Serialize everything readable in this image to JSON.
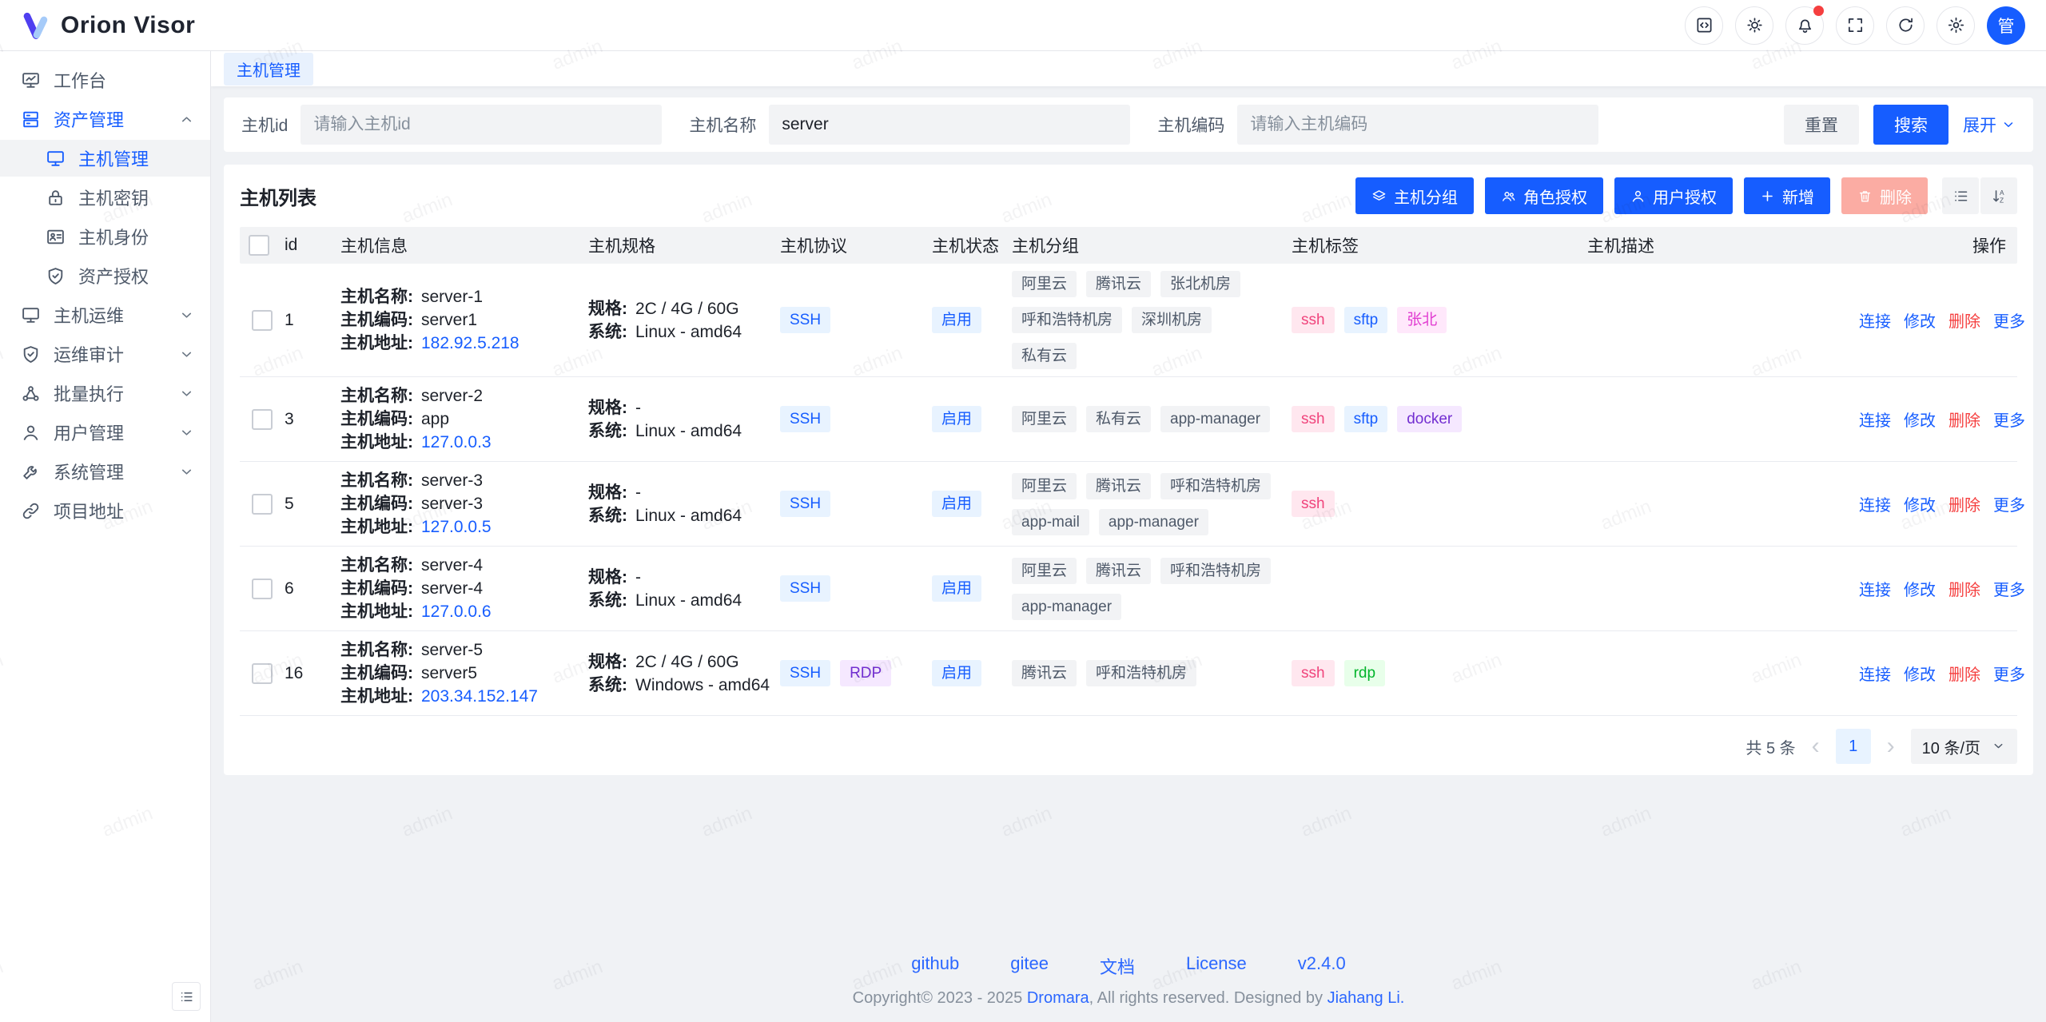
{
  "app": {
    "name": "Orion Visor"
  },
  "colors": {
    "primary": "#165dff",
    "danger": "#f53f3f",
    "danger_disabled_bg": "#fbaca3",
    "tag_palette": {
      "gray": {
        "bg": "#f2f3f5",
        "fg": "#4e5969"
      },
      "blue": {
        "bg": "#e8f3ff",
        "fg": "#165dff"
      },
      "purple": {
        "bg": "#f5e8ff",
        "fg": "#722ed1"
      },
      "pink": {
        "bg": "#ffe7ef",
        "fg": "#f0447c"
      },
      "magenta": {
        "bg": "#ffe8fb",
        "fg": "#e13ed1"
      },
      "green": {
        "bg": "#e8ffea",
        "fg": "#00b42a"
      }
    }
  },
  "header": {
    "avatar_text": "管",
    "buttons": [
      {
        "key": "code",
        "icon": "code-square-icon",
        "badge": false
      },
      {
        "key": "theme",
        "icon": "sun-icon",
        "badge": false
      },
      {
        "key": "notifications",
        "icon": "bell-icon",
        "badge": true
      },
      {
        "key": "fullscreen",
        "icon": "fullscreen-icon",
        "badge": false
      },
      {
        "key": "refresh",
        "icon": "refresh-icon",
        "badge": false
      },
      {
        "key": "settings",
        "icon": "gear-icon",
        "badge": false
      }
    ]
  },
  "sidebar": {
    "items": [
      {
        "key": "workbench",
        "label": "工作台",
        "icon": "workbench"
      },
      {
        "key": "asset-management",
        "label": "资产管理",
        "icon": "asset",
        "expanded": true,
        "children": [
          {
            "key": "host-management",
            "label": "主机管理",
            "icon": "host",
            "active": true
          },
          {
            "key": "host-key",
            "label": "主机密钥",
            "icon": "lock"
          },
          {
            "key": "host-identity",
            "label": "主机身份",
            "icon": "idcard"
          },
          {
            "key": "asset-authorization",
            "label": "资产授权",
            "icon": "shield"
          }
        ]
      },
      {
        "key": "host-ops",
        "label": "主机运维",
        "icon": "host",
        "collapsible": true
      },
      {
        "key": "ops-audit",
        "label": "运维审计",
        "icon": "shield",
        "collapsible": true
      },
      {
        "key": "batch-execution",
        "label": "批量执行",
        "icon": "cluster",
        "collapsible": true
      },
      {
        "key": "user-management",
        "label": "用户管理",
        "icon": "user",
        "collapsible": true
      },
      {
        "key": "system-management",
        "label": "系统管理",
        "icon": "wrench",
        "collapsible": true
      },
      {
        "key": "project-url",
        "label": "项目地址",
        "icon": "link"
      }
    ]
  },
  "tabs": [
    {
      "label": "主机管理",
      "active": true
    }
  ],
  "filter": {
    "fields": [
      {
        "label": "主机id",
        "placeholder": "请输入主机id",
        "value": ""
      },
      {
        "label": "主机名称",
        "placeholder": "",
        "value": "server"
      },
      {
        "label": "主机编码",
        "placeholder": "请输入主机编码",
        "value": ""
      }
    ],
    "reset_label": "重置",
    "search_label": "搜索",
    "expand_label": "展开"
  },
  "table": {
    "title": "主机列表",
    "toolbar": [
      {
        "key": "host-group",
        "label": "主机分组",
        "icon": "layers-icon",
        "disabled": false
      },
      {
        "key": "role-grant",
        "label": "角色授权",
        "icon": "user-group-icon",
        "disabled": false
      },
      {
        "key": "user-grant",
        "label": "用户授权",
        "icon": "user-icon",
        "disabled": false
      },
      {
        "key": "create",
        "label": "新增",
        "icon": "plus-icon",
        "disabled": false
      },
      {
        "key": "delete",
        "label": "删除",
        "icon": "trash-icon",
        "disabled": true
      }
    ],
    "icon_buttons": [
      {
        "key": "column-setting",
        "icon": "list-icon"
      },
      {
        "key": "sort-setting",
        "icon": "sort-icon"
      }
    ],
    "columns": [
      "id",
      "主机信息",
      "主机规格",
      "主机协议",
      "主机状态",
      "主机分组",
      "主机标签",
      "主机描述",
      "操作"
    ],
    "info_labels": {
      "name": "主机名称:",
      "code": "主机编码:",
      "address": "主机地址:"
    },
    "spec_labels": {
      "spec": "规格:",
      "system": "系统:"
    },
    "protocol_colors": {
      "SSH": "blue",
      "RDP": "purple"
    },
    "status_color": "blue",
    "actions": [
      {
        "label": "连接",
        "danger": false
      },
      {
        "label": "修改",
        "danger": false
      },
      {
        "label": "删除",
        "danger": true
      },
      {
        "label": "更多",
        "danger": false
      }
    ],
    "rows": [
      {
        "id": "1",
        "name": "server-1",
        "code": "server1",
        "address": "182.92.5.218",
        "spec": "2C / 4G / 60G",
        "system": "Linux - amd64",
        "protocols": [
          "SSH"
        ],
        "status": "启用",
        "groups": [
          "阿里云",
          "腾讯云",
          "张北机房",
          "呼和浩特机房",
          "深圳机房",
          "私有云"
        ],
        "tags": [
          {
            "text": "ssh",
            "color": "pink"
          },
          {
            "text": "sftp",
            "color": "blue"
          },
          {
            "text": "张北",
            "color": "magenta"
          }
        ],
        "description": ""
      },
      {
        "id": "3",
        "name": "server-2",
        "code": "app",
        "address": "127.0.0.3",
        "spec": "-",
        "system": "Linux - amd64",
        "protocols": [
          "SSH"
        ],
        "status": "启用",
        "groups": [
          "阿里云",
          "私有云",
          "app-manager"
        ],
        "tags": [
          {
            "text": "ssh",
            "color": "pink"
          },
          {
            "text": "sftp",
            "color": "blue"
          },
          {
            "text": "docker",
            "color": "purple"
          }
        ],
        "description": ""
      },
      {
        "id": "5",
        "name": "server-3",
        "code": "server-3",
        "address": "127.0.0.5",
        "spec": "-",
        "system": "Linux - amd64",
        "protocols": [
          "SSH"
        ],
        "status": "启用",
        "groups": [
          "阿里云",
          "腾讯云",
          "呼和浩特机房",
          "app-mail",
          "app-manager"
        ],
        "tags": [
          {
            "text": "ssh",
            "color": "pink"
          }
        ],
        "description": ""
      },
      {
        "id": "6",
        "name": "server-4",
        "code": "server-4",
        "address": "127.0.0.6",
        "spec": "-",
        "system": "Linux - amd64",
        "protocols": [
          "SSH"
        ],
        "status": "启用",
        "groups": [
          "阿里云",
          "腾讯云",
          "呼和浩特机房",
          "app-manager"
        ],
        "tags": [],
        "description": ""
      },
      {
        "id": "16",
        "name": "server-5",
        "code": "server5",
        "address": "203.34.152.147",
        "spec": "2C / 4G / 60G",
        "system": "Windows - amd64",
        "protocols": [
          "SSH",
          "RDP"
        ],
        "status": "启用",
        "groups": [
          "腾讯云",
          "呼和浩特机房"
        ],
        "tags": [
          {
            "text": "ssh",
            "color": "pink"
          },
          {
            "text": "rdp",
            "color": "green"
          }
        ],
        "description": ""
      }
    ]
  },
  "pagination": {
    "total": "共 5 条",
    "page": "1",
    "page_size": "10 条/页"
  },
  "footer": {
    "links": [
      "github",
      "gitee",
      "文档",
      "License",
      "v2.4.0"
    ],
    "copyright": {
      "prefix": "Copyright© 2023 - 2025 ",
      "link1": "Dromara",
      "middle": ", All rights reserved. Designed by ",
      "link2": "Jiahang Li."
    }
  },
  "watermark": "admin"
}
